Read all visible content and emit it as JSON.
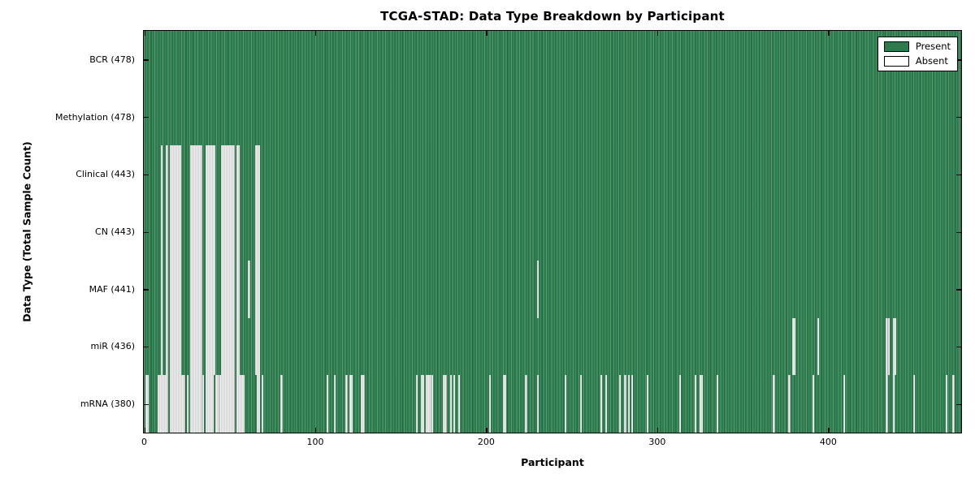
{
  "chart_data": {
    "type": "heatmap",
    "title": "TCGA-STAD: Data Type Breakdown by Participant",
    "xlabel": "Participant",
    "ylabel": "Data Type (Total Sample Count)",
    "n_participants": 478,
    "x_ticks": [
      0,
      100,
      200,
      300,
      400
    ],
    "grid": false,
    "legend_position": "upper right",
    "colors": {
      "present": "#2b7b4d",
      "absent": "#f0f0f0",
      "axes": "#000000"
    },
    "legend": [
      {
        "label": "Present",
        "color": "#2b7b4d"
      },
      {
        "label": "Absent",
        "color": "#ffffff"
      }
    ],
    "rows": [
      {
        "label": "BCR (478)",
        "name": "BCR",
        "present_count": 478,
        "absent_participants": []
      },
      {
        "label": "Methylation (478)",
        "name": "Methylation",
        "present_count": 478,
        "absent_participants": []
      },
      {
        "label": "Clinical (443)",
        "name": "Clinical",
        "present_count": 443,
        "absent_participants": [
          10,
          13,
          15,
          16,
          17,
          18,
          19,
          20,
          21,
          27,
          28,
          29,
          30,
          31,
          32,
          33,
          36,
          37,
          38,
          39,
          40,
          41,
          45,
          46,
          47,
          48,
          49,
          50,
          51,
          52,
          54,
          55,
          65,
          66,
          67
        ]
      },
      {
        "label": "CN (443)",
        "name": "CN",
        "present_count": 443,
        "absent_participants": [
          10,
          13,
          15,
          16,
          17,
          18,
          19,
          20,
          21,
          27,
          28,
          29,
          30,
          31,
          32,
          33,
          36,
          37,
          38,
          39,
          40,
          41,
          45,
          46,
          47,
          48,
          49,
          50,
          51,
          52,
          54,
          55,
          65,
          66,
          67
        ]
      },
      {
        "label": "MAF (441)",
        "name": "MAF",
        "present_count": 441,
        "absent_participants": [
          10,
          13,
          15,
          16,
          17,
          18,
          19,
          20,
          21,
          27,
          28,
          29,
          30,
          31,
          32,
          33,
          36,
          37,
          38,
          39,
          40,
          41,
          45,
          46,
          47,
          48,
          49,
          50,
          51,
          52,
          54,
          55,
          61,
          65,
          66,
          67,
          230
        ]
      },
      {
        "label": "miR (436)",
        "name": "miR",
        "present_count": 436,
        "absent_participants": [
          10,
          13,
          15,
          16,
          17,
          18,
          19,
          20,
          21,
          27,
          28,
          29,
          30,
          31,
          32,
          33,
          36,
          37,
          38,
          39,
          40,
          41,
          45,
          46,
          47,
          48,
          49,
          50,
          51,
          52,
          54,
          55,
          65,
          66,
          67,
          379,
          380,
          394,
          434,
          435,
          438,
          439
        ]
      },
      {
        "label": "mRNA (380)",
        "name": "mRNA",
        "present_count": 380,
        "absent_participants": [
          1,
          2,
          8,
          9,
          10,
          11,
          12,
          13,
          15,
          16,
          17,
          18,
          19,
          20,
          21,
          22,
          23,
          25,
          27,
          28,
          29,
          30,
          31,
          32,
          33,
          34,
          36,
          37,
          38,
          39,
          40,
          42,
          43,
          44,
          45,
          46,
          47,
          48,
          49,
          50,
          51,
          52,
          54,
          55,
          56,
          57,
          58,
          66,
          67,
          69,
          80,
          107,
          111,
          118,
          120,
          121,
          127,
          128,
          159,
          162,
          163,
          165,
          166,
          167,
          168,
          175,
          176,
          179,
          181,
          184,
          202,
          210,
          211,
          223,
          230,
          246,
          255,
          267,
          270,
          278,
          281,
          283,
          285,
          294,
          313,
          322,
          325,
          326,
          335,
          368,
          377,
          391,
          409,
          434,
          438,
          450,
          469,
          473
        ]
      }
    ]
  }
}
